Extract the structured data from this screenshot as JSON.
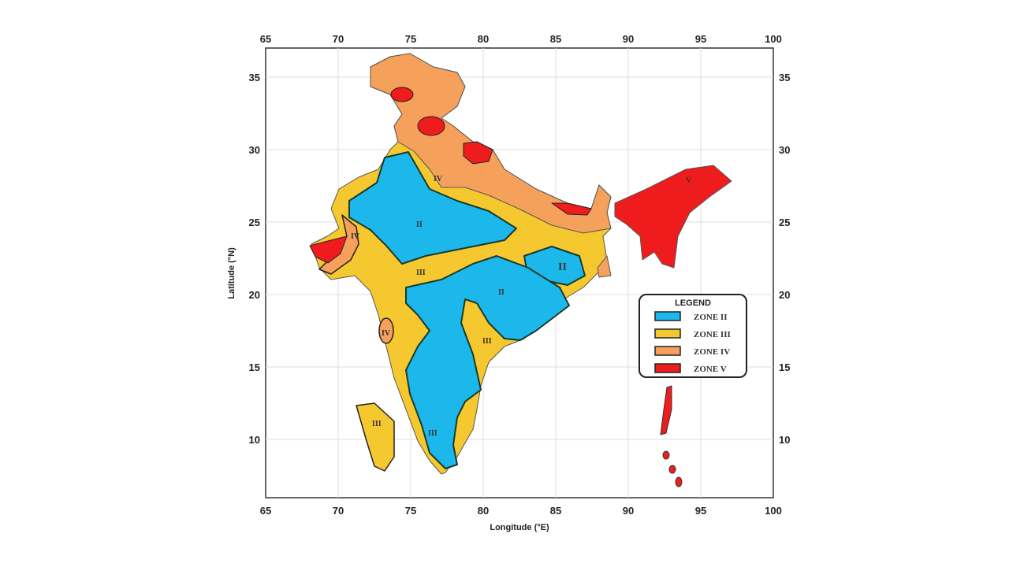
{
  "map": {
    "x_axis": {
      "label": "Longitude (°E)",
      "ticks": [
        "65",
        "70",
        "75",
        "80",
        "85",
        "90",
        "95",
        "100"
      ]
    },
    "y_axis": {
      "label": "Latitude (°N)",
      "ticks": [
        "35",
        "30",
        "25",
        "20",
        "15",
        "10"
      ]
    },
    "legend": {
      "title": "LEGEND",
      "items": [
        {
          "label": "ZONE II",
          "color": "#1cb8ec"
        },
        {
          "label": "ZONE III",
          "color": "#f6c830"
        },
        {
          "label": "ZONE IV",
          "color": "#f5a15c"
        },
        {
          "label": "ZONE V",
          "color": "#ee1c1c"
        }
      ]
    },
    "zone_labels": {
      "ii": "II",
      "iii": "III",
      "iv": "IV",
      "v": "V"
    },
    "grid": true
  }
}
